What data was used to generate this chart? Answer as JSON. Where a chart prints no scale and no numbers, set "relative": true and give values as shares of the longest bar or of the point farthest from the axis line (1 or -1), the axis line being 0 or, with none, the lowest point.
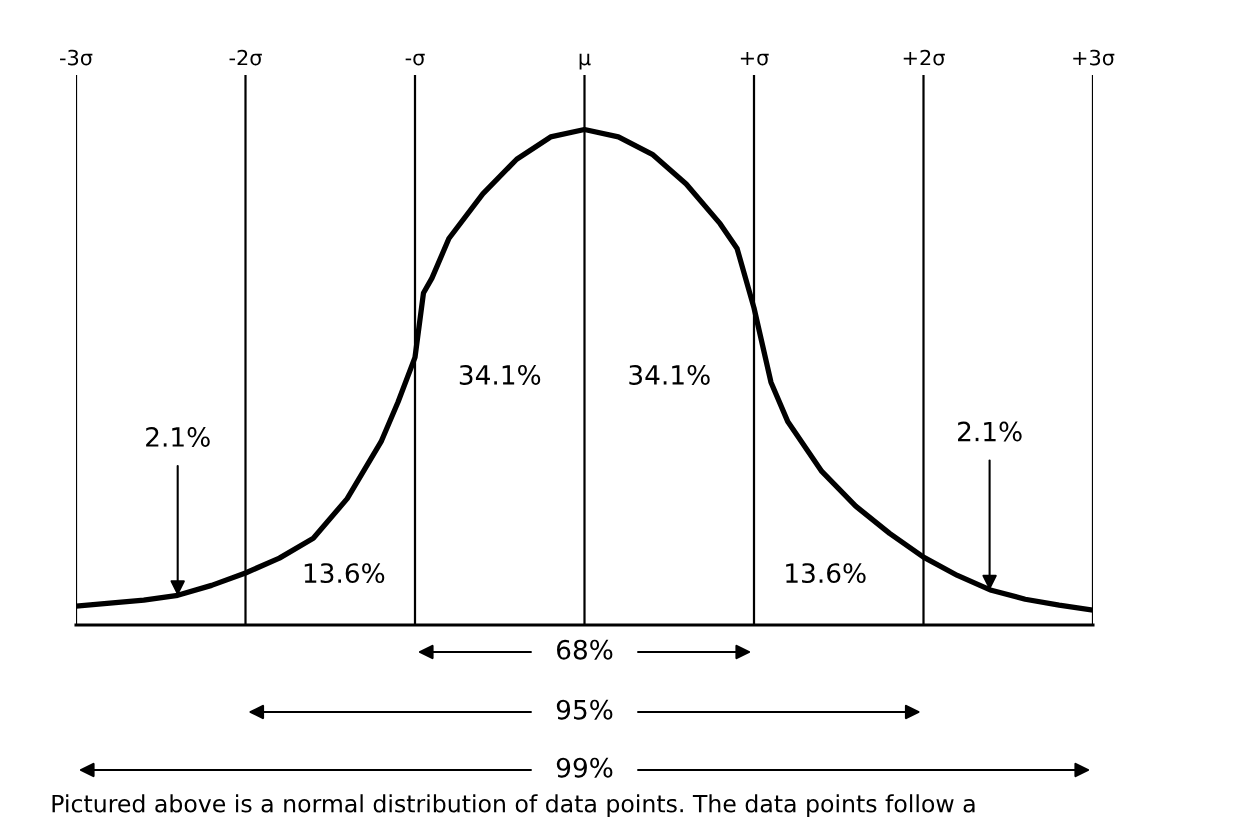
{
  "chart_data": {
    "type": "line",
    "relative": true,
    "x": [
      -3,
      -2.8,
      -2.6,
      -2.4,
      -2.2,
      -2,
      -1.8,
      -1.6,
      -1.4,
      -1.2,
      -1.1,
      -1,
      -0.95,
      -0.9,
      -0.8,
      -0.6,
      -0.4,
      -0.2,
      0,
      0.2,
      0.4,
      0.6,
      0.8,
      0.9,
      1,
      1.1,
      1.2,
      1.4,
      1.6,
      1.8,
      2,
      2.2,
      2.4,
      2.6,
      2.8,
      3
    ],
    "series": [
      {
        "color": "#000000",
        "values": [
          0.038,
          0.044,
          0.05,
          0.06,
          0.08,
          0.105,
          0.135,
          0.175,
          0.255,
          0.37,
          0.45,
          0.54,
          0.67,
          0.7,
          0.78,
          0.87,
          0.94,
          0.985,
          1,
          0.985,
          0.95,
          0.89,
          0.81,
          0.76,
          0.64,
          0.49,
          0.41,
          0.31,
          0.24,
          0.185,
          0.137,
          0.1,
          0.07,
          0.052,
          0.04,
          0.03
        ]
      }
    ],
    "xlim": [
      -3,
      3
    ],
    "xticks": [
      {
        "value": -3,
        "label": "-3σ"
      },
      {
        "value": -2,
        "label": "-2σ"
      },
      {
        "value": -1,
        "label": "-σ"
      },
      {
        "value": 0,
        "label": "μ"
      },
      {
        "value": 1,
        "label": "+σ"
      },
      {
        "value": 2,
        "label": "+2σ"
      },
      {
        "value": 3,
        "label": "+3σ"
      }
    ],
    "grid": "x",
    "marker": "none",
    "line_style": "solid",
    "legend": false,
    "annotations": [
      "34.1%",
      "34.1%",
      "13.6%",
      "13.6%",
      {
        "text": "2.1%",
        "x": -2.4,
        "y": 0.059
      },
      {
        "text": "2.1%",
        "x": 2.39,
        "y": 0.07
      },
      "68%",
      "95%",
      "99%",
      "Pictured above is a normal distribution of data points. The data points follow a"
    ]
  }
}
